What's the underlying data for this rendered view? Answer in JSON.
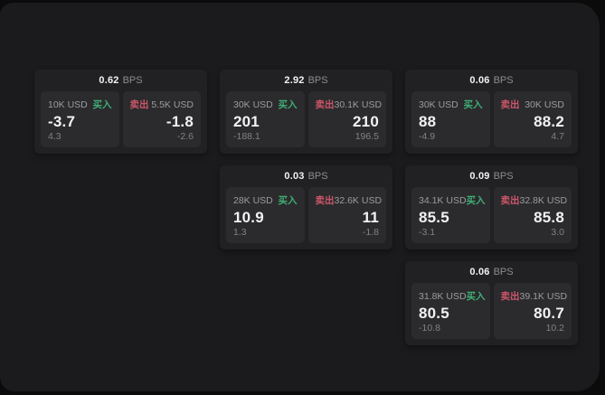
{
  "labels": {
    "bps_unit": "BPS",
    "buy": "买入",
    "sell": "卖出"
  },
  "colors": {
    "buy": "#3fae74",
    "sell": "#cd5669",
    "panel": "#1b1b1d",
    "card": "#212124",
    "tile": "#2b2b2e"
  },
  "cards": [
    {
      "bps": "0.62",
      "buy": {
        "amount": "10K USD",
        "value": "-3.7",
        "delta": "4.3"
      },
      "sell": {
        "amount": "5.5K USD",
        "value": "-1.8",
        "delta": "-2.6"
      }
    },
    {
      "bps": "2.92",
      "buy": {
        "amount": "30K USD",
        "value": "201",
        "delta": "-188.1"
      },
      "sell": {
        "amount": "30.1K USD",
        "value": "210",
        "delta": "196.5"
      }
    },
    {
      "bps": "0.06",
      "buy": {
        "amount": "30K USD",
        "value": "88",
        "delta": "-4.9"
      },
      "sell": {
        "amount": "30K USD",
        "value": "88.2",
        "delta": "4.7"
      }
    },
    {
      "bps": "0.03",
      "buy": {
        "amount": "28K USD",
        "value": "10.9",
        "delta": "1.3"
      },
      "sell": {
        "amount": "32.6K USD",
        "value": "11",
        "delta": "-1.8"
      }
    },
    {
      "bps": "0.09",
      "buy": {
        "amount": "34.1K USD",
        "value": "85.5",
        "delta": "-3.1"
      },
      "sell": {
        "amount": "32.8K USD",
        "value": "85.8",
        "delta": "3.0"
      }
    },
    {
      "bps": "0.06",
      "buy": {
        "amount": "31.8K USD",
        "value": "80.5",
        "delta": "-10.8"
      },
      "sell": {
        "amount": "39.1K USD",
        "value": "80.7",
        "delta": "10.2"
      }
    }
  ]
}
